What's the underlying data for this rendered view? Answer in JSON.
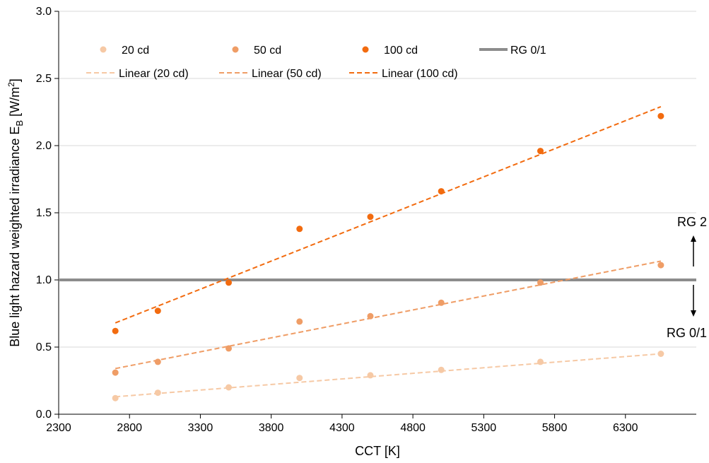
{
  "chart_data": {
    "type": "scatter",
    "xlabel": "CCT   [K]",
    "ylabel_main": "Blue light hazard weighted irradiance E",
    "ylabel_sub": "B",
    "ylabel_unit_pre": "  [W/m",
    "ylabel_unit_sup": "2",
    "ylabel_unit_post": "]",
    "xlim": [
      2300,
      6800
    ],
    "ylim": [
      0.0,
      3.0
    ],
    "x_ticks": [
      2300,
      2800,
      3300,
      3800,
      4300,
      4800,
      5300,
      5800,
      6300
    ],
    "x_tick_labels": [
      "2300",
      "2800",
      "3300",
      "3800",
      "4300",
      "4800",
      "5300",
      "5800",
      "6300"
    ],
    "y_ticks": [
      0.0,
      0.5,
      1.0,
      1.5,
      2.0,
      2.5,
      3.0
    ],
    "y_tick_labels": [
      "0.0",
      "0.5",
      "1.0",
      "1.5",
      "2.0",
      "2.5",
      "3.0"
    ],
    "grid": "horizontal",
    "legend_position": "top-left",
    "series": [
      {
        "name": "20 cd",
        "color": "#f6c9a5",
        "x": [
          2700,
          3000,
          3500,
          4000,
          4500,
          5000,
          5700,
          6550
        ],
        "y": [
          0.12,
          0.16,
          0.2,
          0.27,
          0.29,
          0.33,
          0.39,
          0.45
        ],
        "trend": {
          "name": "Linear (20 cd)",
          "x": [
            2700,
            6550
          ],
          "y": [
            0.13,
            0.45
          ]
        }
      },
      {
        "name": "50 cd",
        "color": "#ef9d66",
        "x": [
          2700,
          3000,
          3500,
          4000,
          4500,
          5000,
          5700,
          6550
        ],
        "y": [
          0.31,
          0.39,
          0.49,
          0.69,
          0.73,
          0.83,
          0.98,
          1.11
        ],
        "trend": {
          "name": "Linear (50 cd)",
          "x": [
            2700,
            6550
          ],
          "y": [
            0.34,
            1.14
          ]
        }
      },
      {
        "name": "100 cd",
        "color": "#f26b0f",
        "x": [
          2700,
          3000,
          3500,
          4000,
          4500,
          5000,
          5700,
          6550
        ],
        "y": [
          0.62,
          0.77,
          0.98,
          1.38,
          1.47,
          1.66,
          1.96,
          2.22
        ],
        "trend": {
          "name": "Linear (100 cd)",
          "x": [
            2700,
            6550
          ],
          "y": [
            0.68,
            2.29
          ]
        }
      }
    ],
    "reference_line": {
      "name": "RG 0/1",
      "y": 1.0,
      "color": "#8c8c8c"
    },
    "annotations": [
      {
        "text": "RG 2",
        "direction": "up"
      },
      {
        "text": "RG 0/1",
        "direction": "down"
      }
    ]
  }
}
